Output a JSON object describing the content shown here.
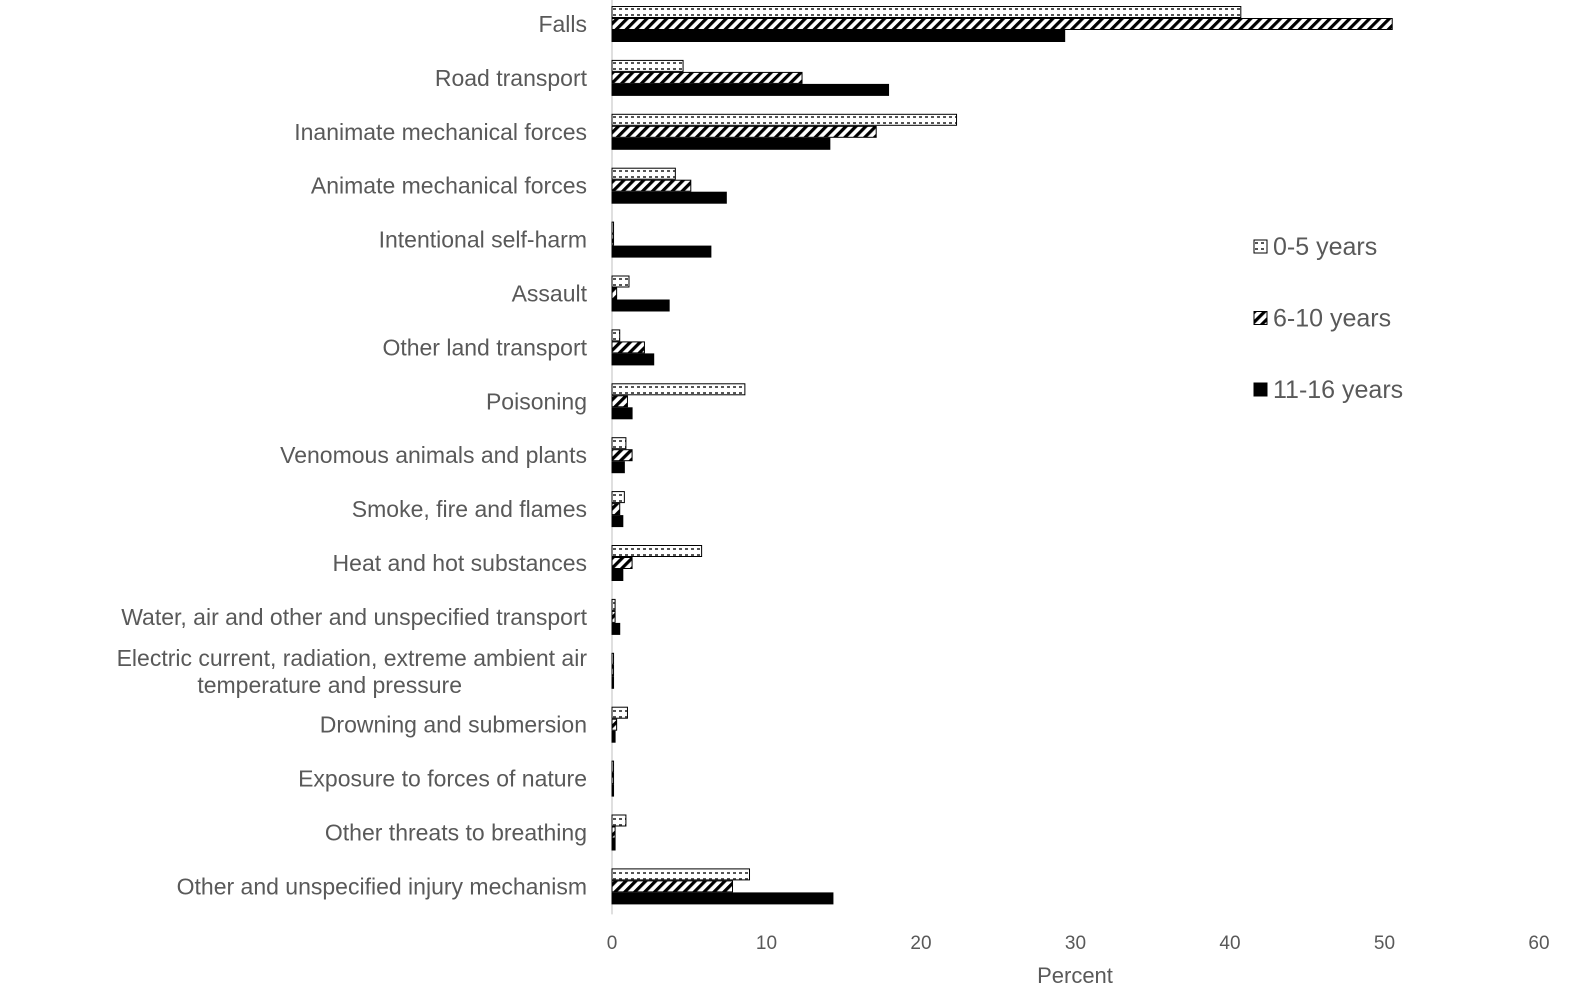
{
  "chart_data": {
    "type": "bar",
    "orientation": "horizontal",
    "categories": [
      "Falls",
      "Road transport",
      "Inanimate mechanical forces",
      "Animate mechanical forces",
      "Intentional self-harm",
      "Assault",
      "Other land transport",
      "Poisoning",
      "Venomous animals and plants",
      "Smoke, fire and flames",
      "Heat and hot substances",
      "Water, air and other and unspecified transport",
      "Electric current, radiation, extreme ambient air temperature and pressure",
      "Drowning and submersion",
      "Exposure to forces of nature",
      "Other threats to breathing",
      "Other and unspecified injury mechanism"
    ],
    "series": [
      {
        "name": "0-5 years",
        "pattern": "dotted",
        "values": [
          40.7,
          4.6,
          22.3,
          4.1,
          0.1,
          1.1,
          0.5,
          8.6,
          0.9,
          0.8,
          5.8,
          0.2,
          0.1,
          1.0,
          0.1,
          0.9,
          8.9
        ]
      },
      {
        "name": "6-10 years",
        "pattern": "diagonal",
        "values": [
          50.5,
          12.3,
          17.1,
          5.1,
          0.1,
          0.3,
          2.1,
          1.0,
          1.3,
          0.5,
          1.3,
          0.2,
          0.1,
          0.3,
          0.1,
          0.2,
          7.8
        ]
      },
      {
        "name": "11-16 years",
        "pattern": "solid",
        "values": [
          29.3,
          17.9,
          14.1,
          7.4,
          6.4,
          3.7,
          2.7,
          1.3,
          0.8,
          0.7,
          0.7,
          0.5,
          0.1,
          0.2,
          0.1,
          0.2,
          14.3
        ]
      }
    ],
    "xlabel": "Percent",
    "ylabel": "",
    "xlim": [
      0,
      60
    ],
    "xticks": [
      "0",
      "10",
      "20",
      "30",
      "40",
      "50",
      "60"
    ],
    "grid": false,
    "legend_position": "right",
    "colors": {
      "text": "#595959",
      "bar_solid": "#000000",
      "bar_outline": "#000000",
      "axis": "#bfbfbf"
    }
  }
}
